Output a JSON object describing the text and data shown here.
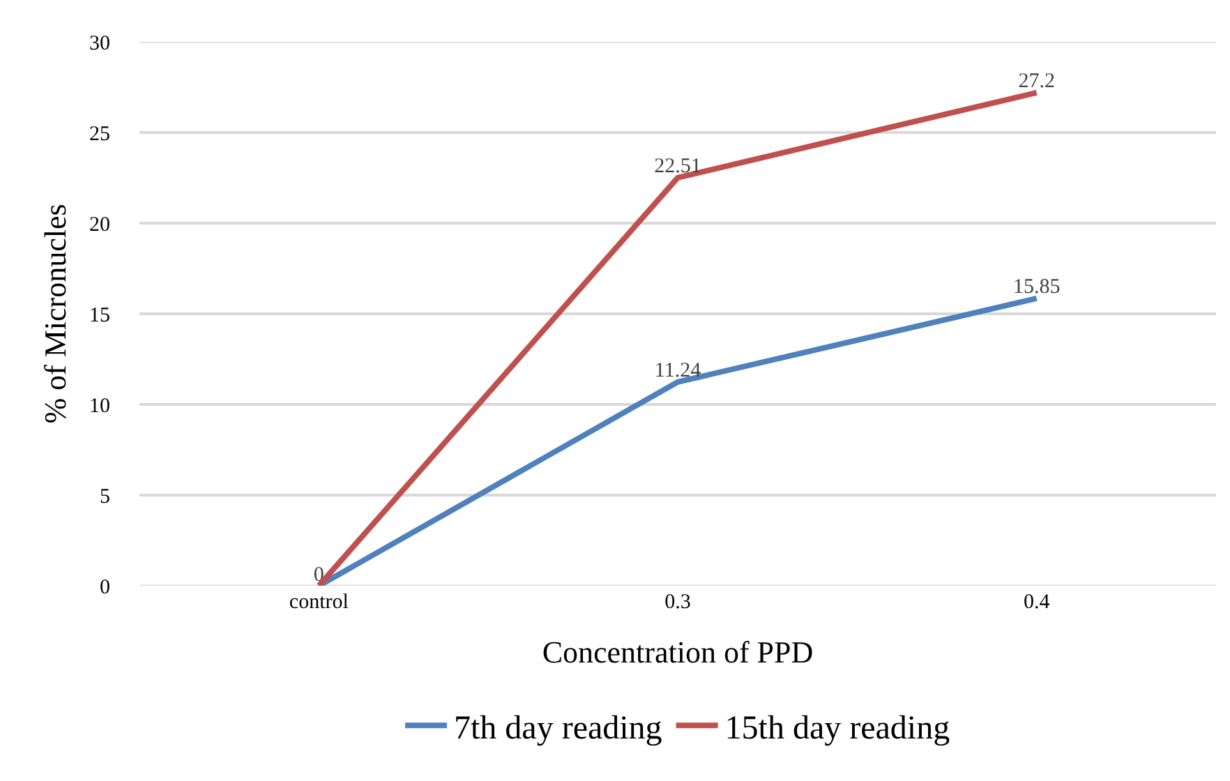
{
  "chart_data": {
    "type": "line",
    "xlabel": "Concentration of PPD",
    "ylabel": "% of Micronucles",
    "categories": [
      "control",
      "0.3",
      "0.4"
    ],
    "series": [
      {
        "name": "7th day reading",
        "color": "#4f81bd",
        "values": [
          0,
          11.24,
          15.85
        ],
        "value_labels": [
          "0",
          "11.24",
          "15.85"
        ]
      },
      {
        "name": "15th day reading",
        "color": "#c0504d",
        "values": [
          0,
          22.51,
          27.2
        ],
        "value_labels": [
          null,
          "22.51",
          "27.2"
        ]
      }
    ],
    "ylim": [
      0,
      30
    ],
    "yticks": [
      0,
      5,
      10,
      15,
      20,
      25,
      30
    ],
    "grid": "y",
    "legend": "bottom",
    "marker": "none",
    "line_style": "solid"
  }
}
